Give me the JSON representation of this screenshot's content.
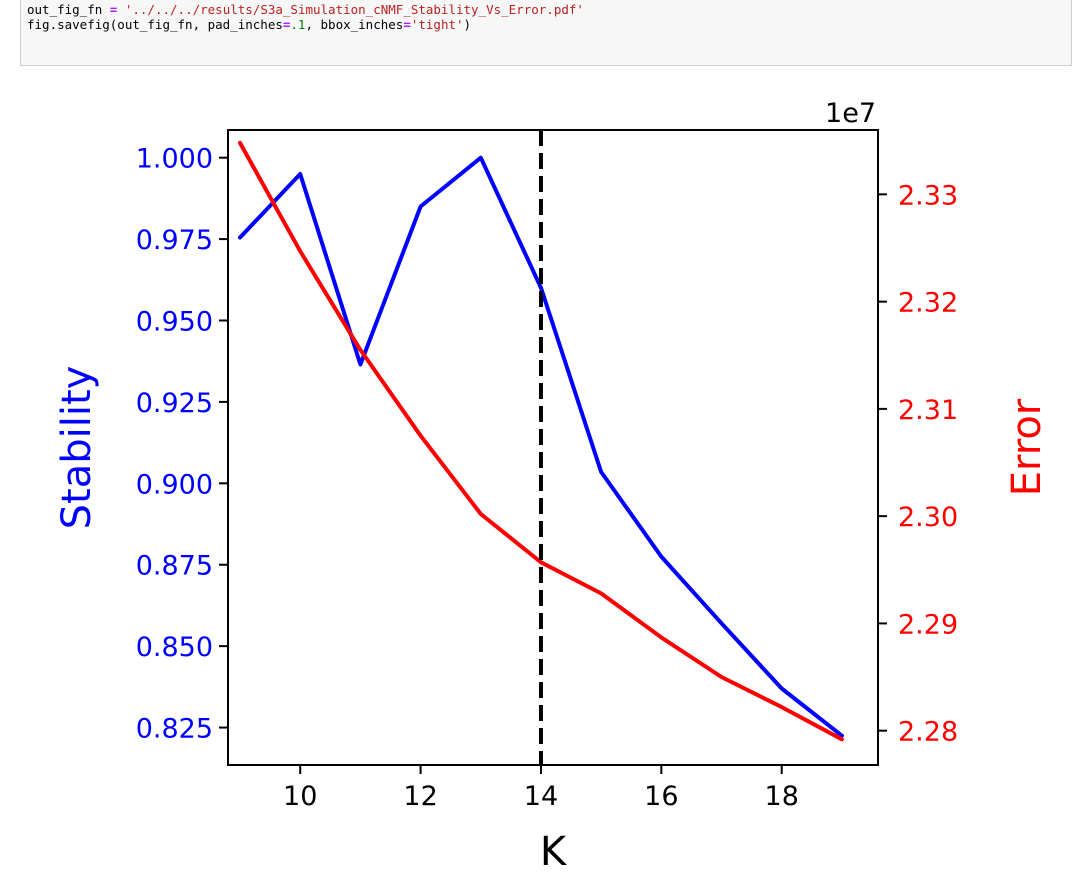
{
  "code_cell": {
    "line1": {
      "var": "out_fig_fn ",
      "op": "=",
      "str": "'../../../results/S3a_Simulation_cNMF_Stability_Vs_Error.pdf'"
    },
    "line2": {
      "p1": "fig.savefig(out_fig_fn, pad_inches",
      "op1": "=",
      "num": ".1",
      "p2": ", bbox_inches",
      "op2": "=",
      "str": "'tight'",
      "p3": ")"
    }
  },
  "chart_data": {
    "type": "line",
    "title": "",
    "xlabel": "K",
    "ylabel_left": "Stability",
    "ylabel_right": "Error",
    "right_axis_offset": "1e7",
    "xlim": [
      8.8,
      19.6
    ],
    "ylim_left": [
      0.8135,
      1.0085
    ],
    "ylim_right": [
      2.2768,
      2.336
    ],
    "xticks": [
      10,
      12,
      14,
      16,
      18
    ],
    "yticks_left": [
      "0.825",
      "0.850",
      "0.875",
      "0.900",
      "0.925",
      "0.950",
      "0.975",
      "1.000"
    ],
    "yticks_right": [
      "2.28",
      "2.29",
      "2.30",
      "2.31",
      "2.32",
      "2.33"
    ],
    "vline_x": 14,
    "colors": {
      "stability": "#0000ff",
      "error": "#ff0000",
      "vline": "#000000"
    },
    "series": [
      {
        "axis": "left",
        "x": [
          9,
          10,
          11,
          12,
          13,
          14,
          15,
          16,
          17,
          18,
          19
        ],
        "values": [
          0.9755,
          0.995,
          0.9365,
          0.985,
          1.0,
          0.96,
          0.9035,
          0.8775,
          0.857,
          0.837,
          0.8225
        ]
      },
      {
        "axis": "right",
        "x": [
          9,
          10,
          11,
          12,
          13,
          14,
          15,
          16,
          17,
          18,
          19
        ],
        "values": [
          2.3348,
          2.3247,
          2.3155,
          2.3075,
          2.3002,
          2.2957,
          2.2928,
          2.2887,
          2.285,
          2.2822,
          2.2792
        ]
      }
    ]
  }
}
